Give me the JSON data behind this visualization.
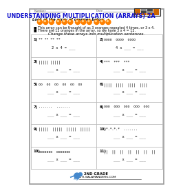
{
  "title": "UNDERSTANDING MULTIPLICATION (ARRAYS) 2A",
  "number_label": "Number",
  "date_label": "Date",
  "intro_text": "Look at the array of oranges below:",
  "bullet1": "This array can be thought of as 3 oranges repeated 4 times, or 3 x 4.",
  "bullet2": "There are 12 oranges in the array, so we have 3 x 4 = 12.",
  "instruction": "Change these arrays into multiplication sentences.",
  "problems": [
    {
      "num": "1)",
      "array_text": "** ** ** **",
      "sentence": "2 x 4 = ___"
    },
    {
      "num": "2)",
      "array_text": "oooo  oooo  oooo",
      "sentence": "4 x ___ = ___"
    },
    {
      "num": "3)",
      "array_text": "||||| |||||",
      "sentence": "___ x ___ = ___"
    },
    {
      "num": "4)",
      "array_text": "***  ***  ***",
      "sentence": "___ x ___ = ___"
    },
    {
      "num": "5)",
      "array_text": "oo  oo  oo  oo  oo  oo",
      "sentence": "___ x ___ = ___"
    },
    {
      "num": "6)",
      "array_text": "||||  ||||  ||||  ||||",
      "sentence": "___ x ___ = ___"
    },
    {
      "num": "7)",
      "array_text": ".......  .......",
      "sentence": "___ x ___ = ___"
    },
    {
      "num": "8)",
      "array_text": "ooo  ooo  ooo  ooo  ooo",
      "sentence": "___ x ___ = ___"
    },
    {
      "num": "9)",
      "array_text": "|||||  |||||  |||||  |||||",
      "sentence": "___ x ___ = ___"
    },
    {
      "num": "10)",
      "array_text": ".*.*.*.*  .......",
      "sentence": "___ x ___ = ___"
    },
    {
      "num": "10)",
      "array_text": "ooooooo  ooooooo",
      "sentence": "___ x ___ = ___"
    },
    {
      "num": "11)",
      "array_text": "||  ||  ||  ||  ||  ||  ||",
      "sentence": "___ x ___ = ___"
    }
  ],
  "bg_color": "#ffffff",
  "title_color": "#1111cc",
  "orange_color": "#FF8000",
  "grid_line_color": "#bbbbbb"
}
